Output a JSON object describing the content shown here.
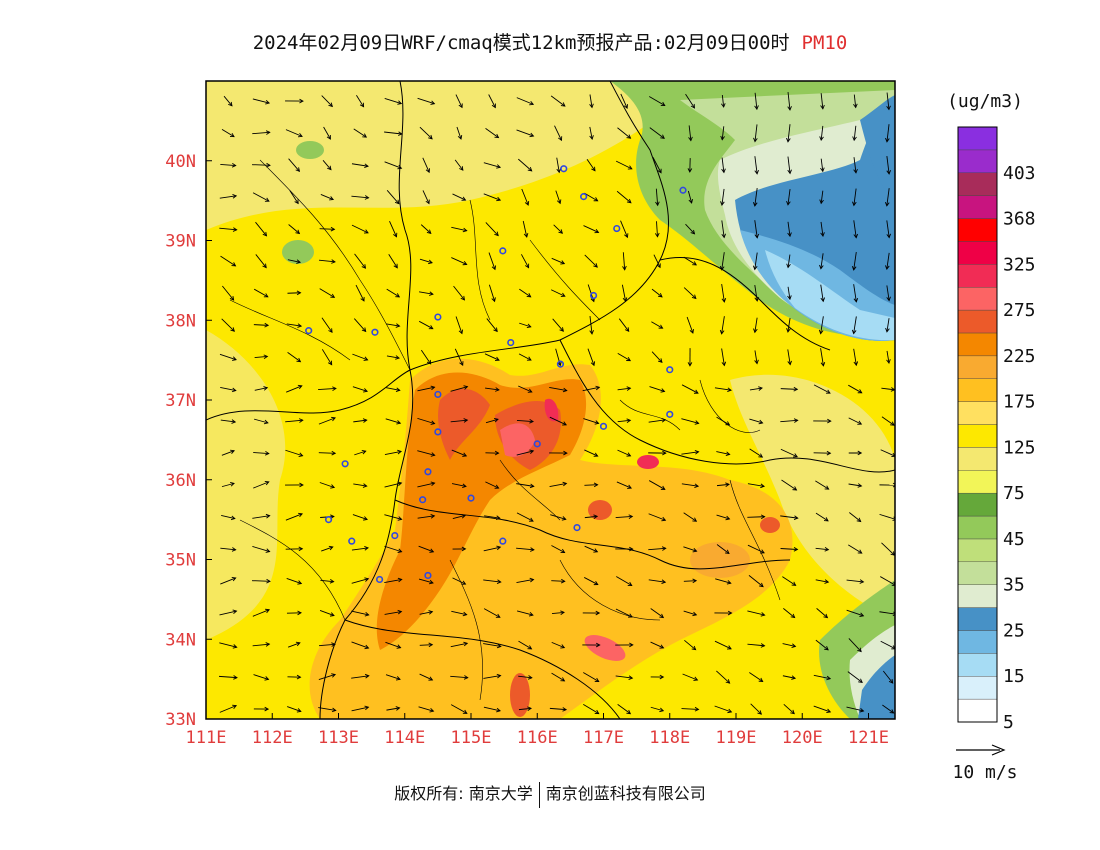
{
  "header": {
    "title": "2024年02月09日WRF/cmaq模式12km预报产品:02月09日00时",
    "pollutant": "PM10",
    "pollutant_color": "#e03030"
  },
  "map": {
    "lon_range": [
      111,
      121.4
    ],
    "lat_range": [
      33,
      41.0
    ],
    "lon_ticks": [
      "111E",
      "112E",
      "113E",
      "114E",
      "115E",
      "116E",
      "117E",
      "118E",
      "119E",
      "120E",
      "121E"
    ],
    "lat_ticks": [
      "33N",
      "34N",
      "35N",
      "36N",
      "37N",
      "38N",
      "39N",
      "40N"
    ],
    "tick_color": "#e03c3c"
  },
  "legend": {
    "unit": "(ug/m3)",
    "bins": [
      {
        "label": "5",
        "color": "#ffffff"
      },
      {
        "label": "",
        "color": "#d9f0fb"
      },
      {
        "label": "15",
        "color": "#a6dcf4"
      },
      {
        "label": "",
        "color": "#6fb7e2"
      },
      {
        "label": "25",
        "color": "#4791c6"
      },
      {
        "label": "",
        "color": "#e0ecd0"
      },
      {
        "label": "35",
        "color": "#c3df9a"
      },
      {
        "label": "",
        "color": "#bfdf7a"
      },
      {
        "label": "45",
        "color": "#93c95a"
      },
      {
        "label": "",
        "color": "#65a83a"
      },
      {
        "label": "75",
        "color": "#f2f558"
      },
      {
        "label": "",
        "color": "#f4e870"
      },
      {
        "label": "125",
        "color": "#fde800"
      },
      {
        "label": "",
        "color": "#ffe060"
      },
      {
        "label": "175",
        "color": "#ffc020"
      },
      {
        "label": "",
        "color": "#f9aa30"
      },
      {
        "label": "225",
        "color": "#f48700"
      },
      {
        "label": "",
        "color": "#ec5a2a"
      },
      {
        "label": "275",
        "color": "#fc6464"
      },
      {
        "label": "",
        "color": "#f12c55"
      },
      {
        "label": "325",
        "color": "#ef0046"
      },
      {
        "label": "",
        "color": "#ff0000"
      },
      {
        "label": "368",
        "color": "#c8147f"
      },
      {
        "label": "",
        "color": "#a82c5a"
      },
      {
        "label": "403",
        "color": "#9a2ccc"
      },
      {
        "label": "",
        "color": "#8a2fe0"
      }
    ],
    "wind_scale_label": "10 m/s"
  },
  "cities": [
    [
      116.4,
      39.9
    ],
    [
      116.7,
      39.55
    ],
    [
      117.2,
      39.15
    ],
    [
      118.2,
      39.63
    ],
    [
      115.48,
      38.87
    ],
    [
      116.85,
      38.31
    ],
    [
      114.5,
      38.04
    ],
    [
      112.55,
      37.87
    ],
    [
      113.55,
      37.85
    ],
    [
      115.6,
      37.72
    ],
    [
      116.35,
      37.45
    ],
    [
      118.0,
      37.38
    ],
    [
      118.0,
      36.82
    ],
    [
      114.5,
      37.07
    ],
    [
      114.5,
      36.6
    ],
    [
      116.0,
      36.45
    ],
    [
      117.0,
      36.67
    ],
    [
      113.1,
      36.2
    ],
    [
      114.35,
      36.1
    ],
    [
      114.27,
      35.75
    ],
    [
      115.0,
      35.77
    ],
    [
      112.85,
      35.5
    ],
    [
      113.2,
      35.23
    ],
    [
      113.85,
      35.3
    ],
    [
      115.48,
      35.23
    ],
    [
      116.6,
      35.4
    ],
    [
      114.35,
      34.8
    ],
    [
      113.62,
      34.75
    ]
  ],
  "footer": {
    "copyright_prefix": "版权所有:",
    "org1": "南京大学",
    "org2": "南京创蓝科技有限公司"
  }
}
